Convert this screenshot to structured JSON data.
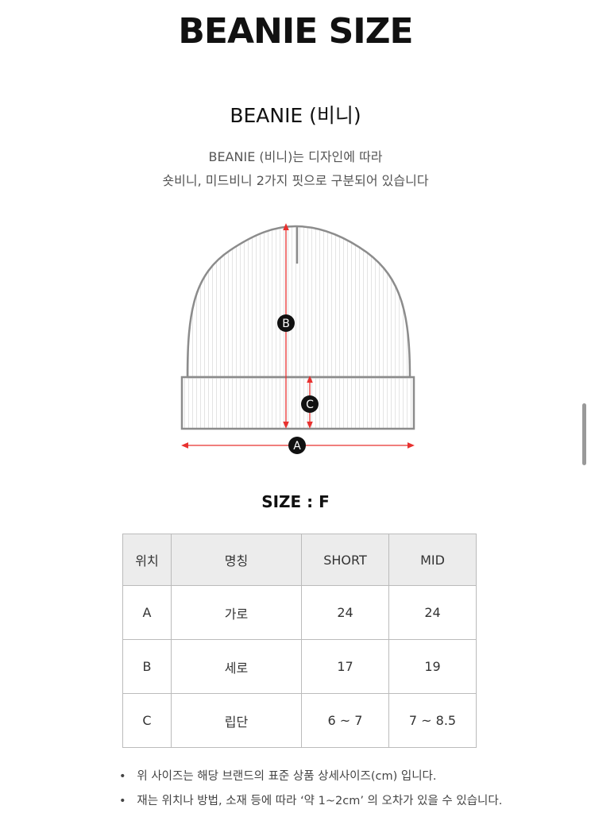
{
  "title": "BEANIE SIZE",
  "subtitle": "BEANIE (비니)",
  "description": [
    "BEANIE (비니)는 디자인에 따라",
    "숏비니, 미드비니 2가지 핏으로 구분되어 있습니다"
  ],
  "diagram": {
    "labels": [
      "A",
      "B",
      "C"
    ],
    "colors": {
      "arrow": "#e8312f",
      "outline": "#8c8c8c"
    }
  },
  "size_label": "SIZE : F",
  "table": {
    "headers": [
      "위치",
      "명칭",
      "SHORT",
      "MID"
    ],
    "rows": [
      [
        "A",
        "가로",
        "24",
        "24"
      ],
      [
        "B",
        "세로",
        "17",
        "19"
      ],
      [
        "C",
        "립단",
        "6 ~ 7",
        "7 ~ 8.5"
      ]
    ]
  },
  "notes": [
    "위 사이즈는 해당 브랜드의 표준 상품 상세사이즈(cm) 입니다.",
    "재는 위치나 방법, 소재 등에 따라 ‘약 1~2cm’ 의 오차가 있을 수 있습니다."
  ]
}
